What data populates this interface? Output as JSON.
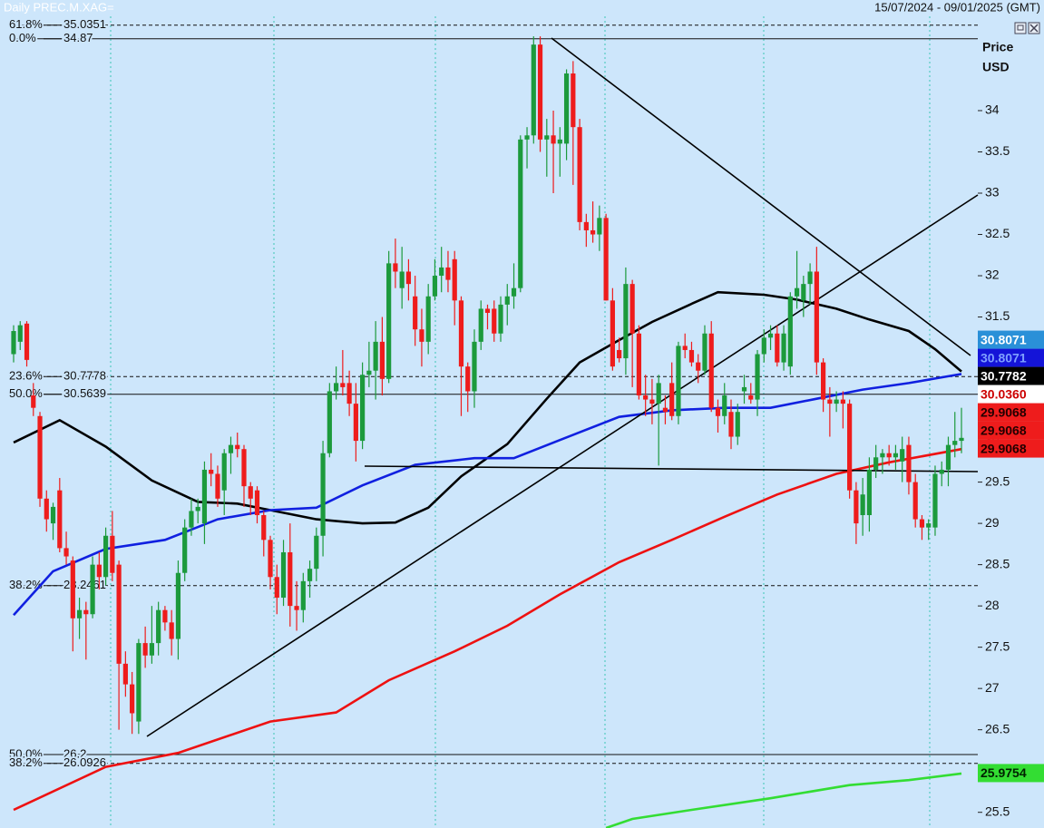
{
  "chart_data": {
    "type": "candlestick",
    "title": "Daily PREC.M.XAG=",
    "subtitle": "15/07/2024 - 09/01/2025 (GMT)",
    "y_label": "Price",
    "y_unit": "USD",
    "up_color": "#1c9a3c",
    "down_color": "#ee1c1c",
    "ylim": [
      25.31,
      35.34
    ],
    "yticks": [
      25.5,
      26,
      26.5,
      27,
      27.5,
      28,
      28.5,
      29,
      29.5,
      30,
      30.5,
      31,
      31.5,
      32,
      32.5,
      33,
      33.5,
      34
    ],
    "candles": [
      [
        31.05,
        31.4,
        30.95,
        31.33
      ],
      [
        31.2,
        31.45,
        31.1,
        31.4
      ],
      [
        31.42,
        31.45,
        30.9,
        30.98
      ],
      [
        30.55,
        30.7,
        30.3,
        30.4
      ],
      [
        30.3,
        30.35,
        29.2,
        29.3
      ],
      [
        29.3,
        29.4,
        28.9,
        29.05
      ],
      [
        29.0,
        29.25,
        28.8,
        29.2
      ],
      [
        29.4,
        29.55,
        28.65,
        28.7
      ],
      [
        28.7,
        28.9,
        28.5,
        28.6
      ],
      [
        28.55,
        28.6,
        27.45,
        27.85
      ],
      [
        27.85,
        28.1,
        27.6,
        27.95
      ],
      [
        27.95,
        28.05,
        27.35,
        27.9
      ],
      [
        27.9,
        28.6,
        27.85,
        28.5
      ],
      [
        28.5,
        28.65,
        28.2,
        28.35
      ],
      [
        28.35,
        28.95,
        28.25,
        28.85
      ],
      [
        28.85,
        29.15,
        28.3,
        28.4
      ],
      [
        28.5,
        28.55,
        26.5,
        27.3
      ],
      [
        27.3,
        27.45,
        26.9,
        27.05
      ],
      [
        27.05,
        27.2,
        26.45,
        26.7
      ],
      [
        26.6,
        27.6,
        26.45,
        27.55
      ],
      [
        27.55,
        27.75,
        27.25,
        27.4
      ],
      [
        27.4,
        28.0,
        27.3,
        27.55
      ],
      [
        27.55,
        28.05,
        27.4,
        27.95
      ],
      [
        27.95,
        28.0,
        27.7,
        27.8
      ],
      [
        27.8,
        27.95,
        27.4,
        27.6
      ],
      [
        27.6,
        28.55,
        27.35,
        28.4
      ],
      [
        28.4,
        29.05,
        28.3,
        28.95
      ],
      [
        28.95,
        29.3,
        28.85,
        29.15
      ],
      [
        29.15,
        29.3,
        29.0,
        29.2
      ],
      [
        29.0,
        29.75,
        28.75,
        29.65
      ],
      [
        29.65,
        29.85,
        29.45,
        29.6
      ],
      [
        29.6,
        29.7,
        29.2,
        29.3
      ],
      [
        29.4,
        29.9,
        29.1,
        29.85
      ],
      [
        29.85,
        30.05,
        29.6,
        29.95
      ],
      [
        29.95,
        30.1,
        29.8,
        29.9
      ],
      [
        29.9,
        29.95,
        29.2,
        29.45
      ],
      [
        29.45,
        29.5,
        29.1,
        29.3
      ],
      [
        29.4,
        29.45,
        29.0,
        29.1
      ],
      [
        29.1,
        29.15,
        28.6,
        28.8
      ],
      [
        28.8,
        28.85,
        28.2,
        28.35
      ],
      [
        28.35,
        28.5,
        27.9,
        28.1
      ],
      [
        28.1,
        28.8,
        28.0,
        28.65
      ],
      [
        28.65,
        29.0,
        27.75,
        28.0
      ],
      [
        28.0,
        28.3,
        27.7,
        27.95
      ],
      [
        27.95,
        28.4,
        27.8,
        28.3
      ],
      [
        28.3,
        28.55,
        28.1,
        28.45
      ],
      [
        28.45,
        28.95,
        28.3,
        28.85
      ],
      [
        28.85,
        30.0,
        28.6,
        29.85
      ],
      [
        29.85,
        30.7,
        29.8,
        30.6
      ],
      [
        30.6,
        30.9,
        30.5,
        30.7
      ],
      [
        30.7,
        31.1,
        30.55,
        30.65
      ],
      [
        30.7,
        30.85,
        30.3,
        30.45
      ],
      [
        30.45,
        30.7,
        29.75,
        30.0
      ],
      [
        30.0,
        30.95,
        29.9,
        30.8
      ],
      [
        30.8,
        31.2,
        30.65,
        30.85
      ],
      [
        30.85,
        31.45,
        30.5,
        31.2
      ],
      [
        31.2,
        31.5,
        30.55,
        30.75
      ],
      [
        30.75,
        32.3,
        30.7,
        32.15
      ],
      [
        32.15,
        32.45,
        31.85,
        32.05
      ],
      [
        31.85,
        32.35,
        31.6,
        32.05
      ],
      [
        32.05,
        32.2,
        31.7,
        31.9
      ],
      [
        31.75,
        32.0,
        31.15,
        31.35
      ],
      [
        31.35,
        31.6,
        30.9,
        31.2
      ],
      [
        31.2,
        31.9,
        31.05,
        31.75
      ],
      [
        31.75,
        32.2,
        31.7,
        32.0
      ],
      [
        32.0,
        32.35,
        31.8,
        32.1
      ],
      [
        32.1,
        32.3,
        31.8,
        31.95
      ],
      [
        32.2,
        32.3,
        31.4,
        31.7
      ],
      [
        31.7,
        31.75,
        30.3,
        30.9
      ],
      [
        30.9,
        30.95,
        30.35,
        30.6
      ],
      [
        30.6,
        31.35,
        30.4,
        31.2
      ],
      [
        31.2,
        31.7,
        31.1,
        31.6
      ],
      [
        31.6,
        31.65,
        31.35,
        31.55
      ],
      [
        31.6,
        31.7,
        31.2,
        31.3
      ],
      [
        31.3,
        31.75,
        31.2,
        31.65
      ],
      [
        31.65,
        31.9,
        31.4,
        31.75
      ],
      [
        31.75,
        32.15,
        31.6,
        31.85
      ],
      [
        31.85,
        33.7,
        31.8,
        33.65
      ],
      [
        33.65,
        33.8,
        33.3,
        33.7
      ],
      [
        33.7,
        34.9,
        33.6,
        34.8
      ],
      [
        34.8,
        34.9,
        33.5,
        33.65
      ],
      [
        33.65,
        33.9,
        33.2,
        33.7
      ],
      [
        33.7,
        34.0,
        33.0,
        33.6
      ],
      [
        33.6,
        33.8,
        33.2,
        33.65
      ],
      [
        33.6,
        34.5,
        33.4,
        34.45
      ],
      [
        34.45,
        34.6,
        33.1,
        33.8
      ],
      [
        33.8,
        33.9,
        32.55,
        32.65
      ],
      [
        32.65,
        32.75,
        32.35,
        32.55
      ],
      [
        32.55,
        32.9,
        32.4,
        32.5
      ],
      [
        32.5,
        32.85,
        32.3,
        32.7
      ],
      [
        32.7,
        32.75,
        31.7,
        31.7
      ],
      [
        31.7,
        31.85,
        30.85,
        30.9
      ],
      [
        31.1,
        31.25,
        30.95,
        31.0
      ],
      [
        31.0,
        32.1,
        30.8,
        31.9
      ],
      [
        31.9,
        31.95,
        30.65,
        31.3
      ],
      [
        31.3,
        31.4,
        30.5,
        30.55
      ],
      [
        30.55,
        30.8,
        30.3,
        30.5
      ],
      [
        30.5,
        30.75,
        30.2,
        30.45
      ],
      [
        30.45,
        30.8,
        29.7,
        30.7
      ],
      [
        30.4,
        30.55,
        30.2,
        30.35
      ],
      [
        30.7,
        30.95,
        30.25,
        30.3
      ],
      [
        30.3,
        31.2,
        30.2,
        31.15
      ],
      [
        31.15,
        31.3,
        31.0,
        31.1
      ],
      [
        31.1,
        31.2,
        30.9,
        30.95
      ],
      [
        30.95,
        31.05,
        30.7,
        30.85
      ],
      [
        30.85,
        31.4,
        30.8,
        31.3
      ],
      [
        31.3,
        31.45,
        30.35,
        30.4
      ],
      [
        30.4,
        30.5,
        30.1,
        30.3
      ],
      [
        30.3,
        30.7,
        30.2,
        30.55
      ],
      [
        30.35,
        30.5,
        29.9,
        30.05
      ],
      [
        30.05,
        30.45,
        29.95,
        30.35
      ],
      [
        30.6,
        30.8,
        30.45,
        30.65
      ],
      [
        30.55,
        30.7,
        30.45,
        30.5
      ],
      [
        30.5,
        31.1,
        30.3,
        31.05
      ],
      [
        31.05,
        31.35,
        30.95,
        31.25
      ],
      [
        31.25,
        31.4,
        31.1,
        31.3
      ],
      [
        31.3,
        31.4,
        30.9,
        30.95
      ],
      [
        30.95,
        31.4,
        30.85,
        31.3
      ],
      [
        30.9,
        31.8,
        30.8,
        31.75
      ],
      [
        31.75,
        32.3,
        31.6,
        31.85
      ],
      [
        31.7,
        32.0,
        31.5,
        31.9
      ],
      [
        31.9,
        32.15,
        31.65,
        32.05
      ],
      [
        32.05,
        32.35,
        30.8,
        30.95
      ],
      [
        30.95,
        31.0,
        30.35,
        30.5
      ],
      [
        30.5,
        30.65,
        30.05,
        30.45
      ],
      [
        30.45,
        30.6,
        30.35,
        30.5
      ],
      [
        30.5,
        30.6,
        30.15,
        30.45
      ],
      [
        30.45,
        30.5,
        29.3,
        29.4
      ],
      [
        29.4,
        29.5,
        28.75,
        29.0
      ],
      [
        29.1,
        29.55,
        28.85,
        29.35
      ],
      [
        29.1,
        29.8,
        28.9,
        29.65
      ],
      [
        29.65,
        29.95,
        29.55,
        29.8
      ],
      [
        29.8,
        29.9,
        29.6,
        29.85
      ],
      [
        29.85,
        29.95,
        29.7,
        29.8
      ],
      [
        29.8,
        29.95,
        29.65,
        29.85
      ],
      [
        29.75,
        30.05,
        29.5,
        29.9
      ],
      [
        29.95,
        30.05,
        29.35,
        29.5
      ],
      [
        29.5,
        29.6,
        28.95,
        29.05
      ],
      [
        29.05,
        29.1,
        28.8,
        28.95
      ],
      [
        28.95,
        29.05,
        28.8,
        29.0
      ],
      [
        28.95,
        29.7,
        28.85,
        29.6
      ],
      [
        29.6,
        29.75,
        29.45,
        29.65
      ],
      [
        29.65,
        30.05,
        29.45,
        29.95
      ],
      [
        29.95,
        30.35,
        29.8,
        30.0
      ],
      [
        30.0,
        30.4,
        29.85,
        30.036
      ]
    ],
    "series": [
      {
        "color": "#000000",
        "x": [
          0,
          7,
          14,
          21,
          28,
          34,
          39,
          46,
          53,
          58,
          63,
          68,
          75,
          81,
          86,
          92,
          97,
          103,
          107,
          114,
          119,
          125,
          130,
          136,
          140,
          144
        ],
        "values": [
          29.98,
          30.25,
          29.93,
          29.52,
          29.26,
          29.24,
          29.16,
          29.05,
          29.0,
          29.01,
          29.19,
          29.57,
          29.96,
          30.51,
          30.95,
          31.22,
          31.44,
          31.66,
          31.8,
          31.77,
          31.71,
          31.6,
          31.47,
          31.33,
          31.11,
          30.84
        ]
      },
      {
        "color": "#1020e0",
        "x": [
          0,
          6,
          14,
          23,
          31,
          39,
          46,
          53,
          61,
          70,
          76,
          83,
          92,
          100,
          108,
          115,
          122,
          129,
          136,
          144
        ],
        "values": [
          27.89,
          28.42,
          28.69,
          28.8,
          29.05,
          29.16,
          29.19,
          29.46,
          29.71,
          29.79,
          29.79,
          30.01,
          30.29,
          30.37,
          30.4,
          30.4,
          30.51,
          30.62,
          30.7,
          30.81
        ]
      },
      {
        "color": "#ee1111",
        "x": [
          0,
          14,
          25,
          39,
          49,
          57,
          67,
          75,
          83,
          92,
          100,
          108,
          116,
          125,
          133,
          144
        ],
        "values": [
          25.53,
          26.05,
          26.22,
          26.6,
          26.71,
          27.1,
          27.45,
          27.76,
          28.14,
          28.53,
          28.8,
          29.08,
          29.35,
          29.6,
          29.74,
          29.9
        ]
      },
      {
        "color": "#33dd33",
        "x": [
          90,
          94,
          103,
          115,
          127,
          136,
          144
        ],
        "values": [
          25.31,
          25.42,
          25.53,
          25.67,
          25.83,
          25.89,
          25.97
        ]
      }
    ],
    "fib_levels": [
      {
        "label": "61.8%",
        "value": 35.0351,
        "dashed": true
      },
      {
        "label": "0.0%",
        "value": 34.87,
        "dashed": false
      },
      {
        "label": "23.6%",
        "value": 30.7778,
        "dashed": true
      },
      {
        "label": "50.0%",
        "value": 30.5639,
        "dashed": false
      },
      {
        "label": "38.2%",
        "value": 28.2461,
        "dashed": true
      },
      {
        "label": "50.0%",
        "value": 26.2,
        "dashed": false
      },
      {
        "label": "38.2%",
        "value": 26.0926,
        "dashed": true
      }
    ],
    "price_tags": [
      {
        "value": 30.8071,
        "bg": "#2a90d8",
        "color": "#ffffff"
      },
      {
        "value": 30.8071,
        "bg": "#1414d8",
        "color": "#7fa0ff"
      },
      {
        "value": 30.7782,
        "bg": "#000000",
        "color": "#ffffff"
      },
      {
        "value": 30.036,
        "label": "30.0360",
        "bg": "#ffffff",
        "color": "#cc0000"
      },
      {
        "value": 29.9068,
        "bg": "#ee1c1c",
        "color": "#220000"
      },
      {
        "value": 29.9068,
        "bg": "#ee1c1c",
        "color": "#220000"
      },
      {
        "value": 29.9068,
        "bg": "#ee1c1c",
        "color": "#220000"
      },
      {
        "value": 25.9754,
        "bg": "#33dd33",
        "color": "#002200"
      }
    ]
  }
}
